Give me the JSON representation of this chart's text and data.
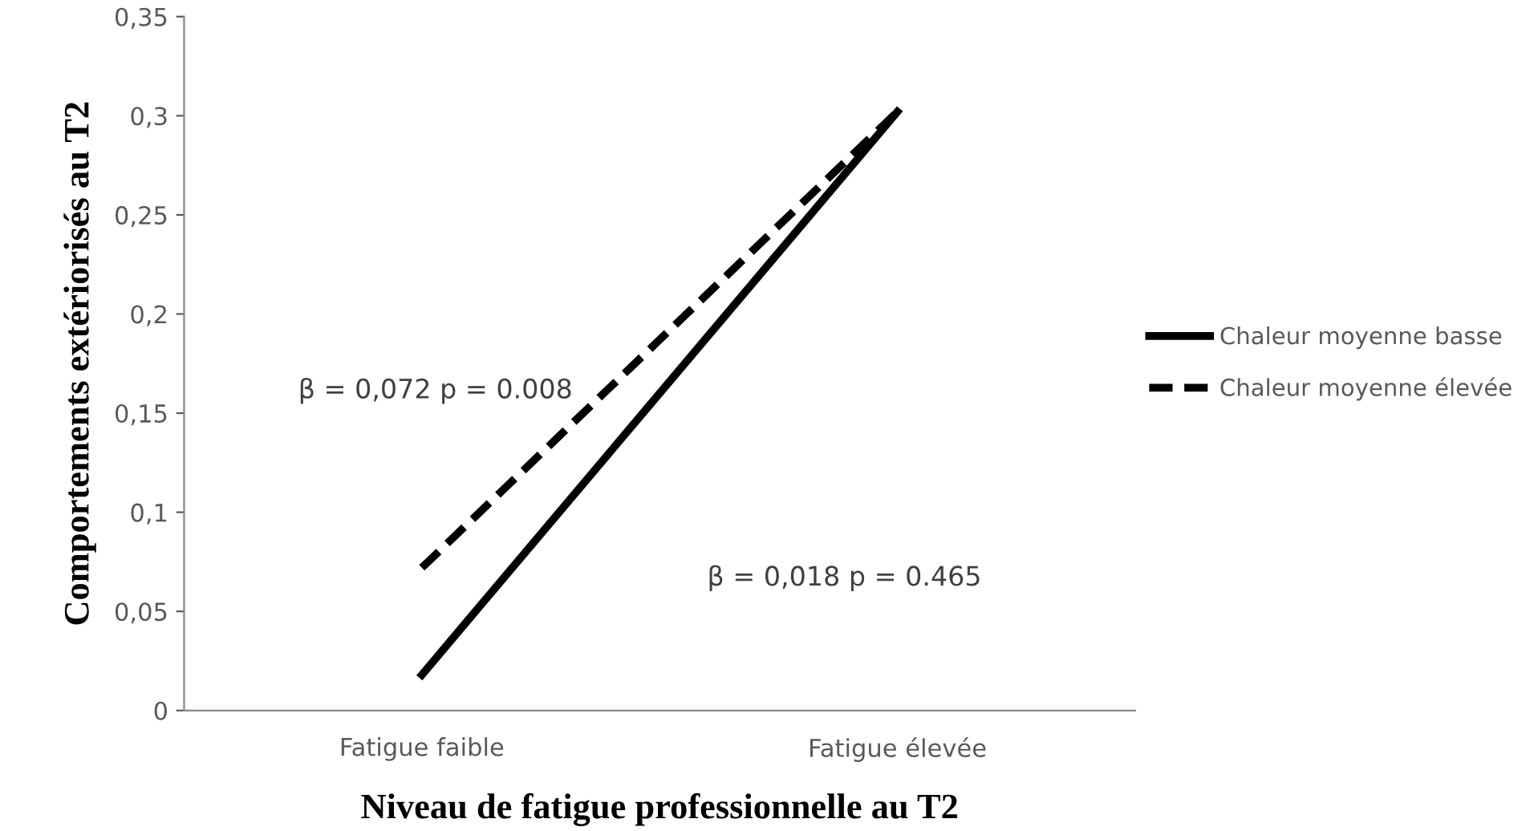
{
  "chart_data": {
    "type": "line",
    "xlabel": "Niveau de fatigue professionnelle au T2",
    "ylabel": "Comportements extériorisés au T2",
    "categories": [
      "Fatigue faible",
      "Fatigue élevée"
    ],
    "series": [
      {
        "name": "Chaleur moyenne basse",
        "color": "#000000",
        "values": [
          0.018,
          0.302
        ],
        "line_style": "solid"
      },
      {
        "name": "Chaleur moyenne élevée",
        "color": "#000000",
        "values": [
          0.072,
          0.302
        ],
        "line_style": "dashed"
      }
    ],
    "ylim": [
      0,
      0.35
    ],
    "yticks": [
      0,
      {
        "value": 0.05,
        "label": "0,05"
      },
      {
        "value": 0.1,
        "label": "0,1"
      },
      {
        "value": 0.15,
        "label": "0,15"
      },
      {
        "value": 0.2,
        "label": "0,2"
      },
      {
        "value": 0.25,
        "label": "0,25"
      },
      {
        "value": 0.3,
        "label": "0,3"
      },
      {
        "value": 0.35,
        "label": "0,35"
      }
    ],
    "annotations": [
      "β = 0,072 p = 0.008",
      "β = 0,018 p = 0.465"
    ],
    "legend": "right",
    "grid": false,
    "marker": "none"
  }
}
